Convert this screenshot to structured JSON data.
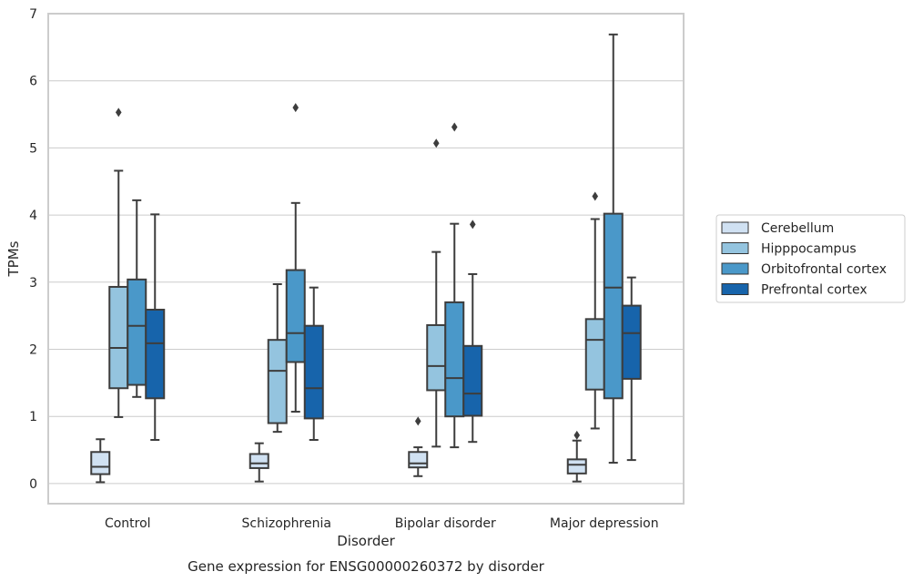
{
  "chart_data": {
    "type": "box",
    "title": "Gene expression for ENSG00000260372 by disorder",
    "xlabel": "Disorder",
    "ylabel": "TPMs",
    "ylim": [
      -0.3,
      7
    ],
    "yticks": [
      "0",
      "1",
      "2",
      "3",
      "4",
      "5",
      "6",
      "7"
    ],
    "grid": true,
    "legend_position": "right",
    "categories": [
      "Control",
      "Schizophrenia",
      "Bipolar disorder",
      "Major depression"
    ],
    "series": [
      {
        "name": "Cerebellum",
        "color": "#d0e1f2",
        "boxes": [
          {
            "q1": 0.14,
            "median": 0.25,
            "q3": 0.47,
            "whisker_low": 0.02,
            "whisker_high": 0.66,
            "outliers": []
          },
          {
            "q1": 0.23,
            "median": 0.3,
            "q3": 0.44,
            "whisker_low": 0.03,
            "whisker_high": 0.6,
            "outliers": []
          },
          {
            "q1": 0.24,
            "median": 0.3,
            "q3": 0.47,
            "whisker_low": 0.11,
            "whisker_high": 0.54,
            "outliers": [
              0.93
            ]
          },
          {
            "q1": 0.15,
            "median": 0.28,
            "q3": 0.36,
            "whisker_low": 0.03,
            "whisker_high": 0.64,
            "outliers": [
              0.72
            ]
          }
        ]
      },
      {
        "name": "Hipppocampus",
        "color": "#94c4df",
        "boxes": [
          {
            "q1": 1.42,
            "median": 2.02,
            "q3": 2.93,
            "whisker_low": 0.99,
            "whisker_high": 4.66,
            "outliers": [
              5.53
            ]
          },
          {
            "q1": 0.9,
            "median": 1.68,
            "q3": 2.14,
            "whisker_low": 0.77,
            "whisker_high": 2.97,
            "outliers": []
          },
          {
            "q1": 1.39,
            "median": 1.75,
            "q3": 2.36,
            "whisker_low": 0.55,
            "whisker_high": 3.45,
            "outliers": [
              5.07
            ]
          },
          {
            "q1": 1.4,
            "median": 2.14,
            "q3": 2.45,
            "whisker_low": 0.82,
            "whisker_high": 3.94,
            "outliers": [
              4.28
            ]
          }
        ]
      },
      {
        "name": "Orbitofrontal cortex",
        "color": "#4a98c9",
        "boxes": [
          {
            "q1": 1.47,
            "median": 2.35,
            "q3": 3.04,
            "whisker_low": 1.29,
            "whisker_high": 4.22,
            "outliers": []
          },
          {
            "q1": 1.81,
            "median": 2.24,
            "q3": 3.18,
            "whisker_low": 1.07,
            "whisker_high": 4.18,
            "outliers": [
              5.6
            ]
          },
          {
            "q1": 1.0,
            "median": 1.57,
            "q3": 2.7,
            "whisker_low": 0.54,
            "whisker_high": 3.87,
            "outliers": [
              5.31
            ]
          },
          {
            "q1": 1.27,
            "median": 2.92,
            "q3": 4.02,
            "whisker_low": 0.31,
            "whisker_high": 6.69,
            "outliers": []
          }
        ]
      },
      {
        "name": "Prefrontal cortex",
        "color": "#1764ab",
        "boxes": [
          {
            "q1": 1.27,
            "median": 2.09,
            "q3": 2.59,
            "whisker_low": 0.65,
            "whisker_high": 4.01,
            "outliers": []
          },
          {
            "q1": 0.97,
            "median": 1.42,
            "q3": 2.35,
            "whisker_low": 0.65,
            "whisker_high": 2.92,
            "outliers": []
          },
          {
            "q1": 1.01,
            "median": 1.34,
            "q3": 2.05,
            "whisker_low": 0.62,
            "whisker_high": 3.12,
            "outliers": [
              3.86
            ]
          },
          {
            "q1": 1.56,
            "median": 2.24,
            "q3": 2.65,
            "whisker_low": 0.35,
            "whisker_high": 3.07,
            "outliers": []
          }
        ]
      }
    ]
  }
}
